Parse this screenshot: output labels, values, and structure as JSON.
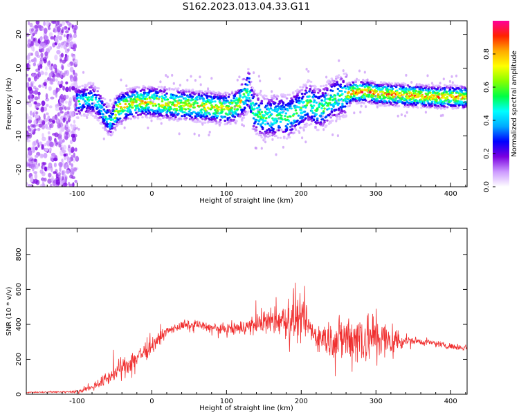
{
  "title": "S162.2023.013.04.33.G11",
  "colors": {
    "snr_line": "#f03030",
    "colormap": [
      "#ffffff",
      "#cc99ff",
      "#7a00e0",
      "#0000ff",
      "#00aaff",
      "#00ffff",
      "#00ff44",
      "#88ff00",
      "#ffff00",
      "#ffaa00",
      "#ff2200",
      "#ff0099"
    ]
  },
  "chart_data": [
    {
      "type": "heatmap",
      "xlabel": "Height of straight line (km)",
      "ylabel": "Frequency (Hz)",
      "xlim": [
        -168,
        422
      ],
      "ylim": [
        -25,
        24
      ],
      "xticks": [
        -100,
        0,
        100,
        200,
        300,
        400
      ],
      "yticks": [
        -20,
        -10,
        0,
        10,
        20
      ],
      "colorbar": {
        "label": "Normalized spectral amplitude",
        "range": [
          0,
          1
        ],
        "ticks": [
          "0.0",
          "0.2",
          "0.4",
          "0.6",
          "0.8"
        ]
      },
      "ridge": {
        "x": [
          -100,
          -90,
          -80,
          -70,
          -62,
          -55,
          -45,
          -35,
          -20,
          0,
          20,
          50,
          80,
          100,
          115,
          125,
          130,
          135,
          142,
          150,
          160,
          170,
          180,
          190,
          200,
          210,
          220,
          230,
          240,
          250,
          260,
          270,
          280,
          290,
          300,
          320,
          340,
          360,
          380,
          400,
          422
        ],
        "y": [
          0,
          0.5,
          1,
          -1,
          -4,
          -6,
          -2,
          -1,
          0,
          0,
          -0.5,
          -1,
          -1.5,
          -2,
          -1,
          2,
          4,
          -2,
          -3.5,
          -4.5,
          -4.5,
          -4,
          -4.5,
          -3.5,
          -2,
          0,
          -2,
          -1.5,
          0.5,
          1.5,
          2,
          3,
          3,
          3,
          2.5,
          2.2,
          2,
          1.8,
          1.5,
          1.5,
          1.4
        ]
      },
      "noise_region_x": [
        -168,
        -100
      ]
    },
    {
      "type": "line",
      "xlabel": "Height of straight line (km)",
      "ylabel": "SNR (10 * v/v)",
      "xlim": [
        -168,
        422
      ],
      "ylim": [
        0,
        950
      ],
      "xticks": [
        -100,
        0,
        100,
        200,
        300,
        400
      ],
      "yticks": [
        0,
        200,
        400,
        600,
        800
      ],
      "envelope": {
        "x": [
          -168,
          -100,
          -80,
          -60,
          -40,
          -20,
          0,
          20,
          40,
          60,
          80,
          100,
          120,
          140,
          160,
          180,
          190,
          200,
          210,
          220,
          240,
          260,
          280,
          300,
          320,
          340,
          360,
          380,
          400,
          422
        ],
        "mean": [
          10,
          15,
          40,
          90,
          150,
          210,
          280,
          360,
          390,
          400,
          380,
          370,
          380,
          400,
          420,
          420,
          440,
          420,
          390,
          330,
          310,
          320,
          330,
          320,
          300,
          310,
          300,
          290,
          275,
          265
        ],
        "spread": [
          5,
          10,
          30,
          60,
          90,
          100,
          70,
          40,
          40,
          40,
          40,
          50,
          70,
          90,
          110,
          160,
          260,
          180,
          120,
          110,
          160,
          220,
          260,
          220,
          170,
          40,
          30,
          30,
          25,
          25
        ]
      }
    }
  ]
}
